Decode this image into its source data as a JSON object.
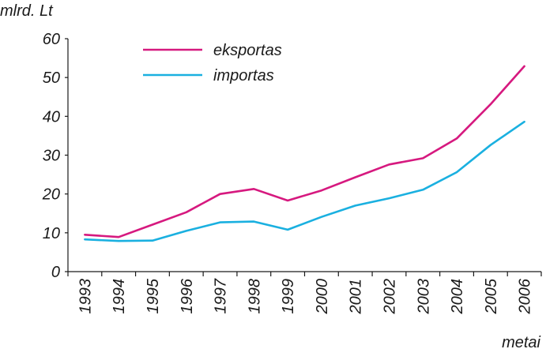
{
  "chart_data": {
    "type": "line",
    "title": "",
    "ylabel": "mlrd. Lt",
    "xlabel": "metai",
    "ylim": [
      0,
      60
    ],
    "yticks": [
      0,
      10,
      20,
      30,
      40,
      50,
      60
    ],
    "categories": [
      "1993",
      "1994",
      "1995",
      "1996",
      "1997",
      "1998",
      "1999",
      "2000",
      "2001",
      "2002",
      "2003",
      "2004",
      "2005",
      "2006"
    ],
    "series": [
      {
        "name": "eksportas",
        "color": "#d6197f",
        "values": [
          9.5,
          8.9,
          12.1,
          15.3,
          20.0,
          21.3,
          18.3,
          20.9,
          24.3,
          27.6,
          29.2,
          34.3,
          43.1,
          52.9
        ]
      },
      {
        "name": "importas",
        "color": "#1ab0e0",
        "values": [
          8.3,
          7.9,
          8.0,
          10.5,
          12.7,
          12.9,
          10.8,
          14.1,
          17.0,
          18.9,
          21.1,
          25.6,
          32.6,
          38.6
        ]
      }
    ],
    "legend_position": "top-left",
    "grid": false
  }
}
